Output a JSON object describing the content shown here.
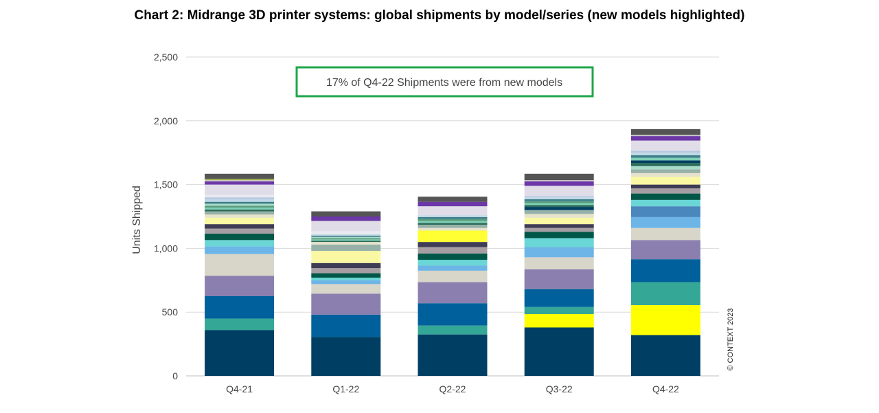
{
  "chart_data": {
    "type": "bar",
    "stacked": true,
    "title": "Chart 2: Midrange 3D printer systems: global shipments by model/series (new models highlighted)",
    "ylabel": "Units Shipped",
    "xlabel": "",
    "ylim": [
      0,
      2500
    ],
    "yticks": [
      0,
      500,
      1000,
      1500,
      2000,
      2500
    ],
    "ytick_labels": [
      "0",
      "500",
      "1,000",
      "1,500",
      "2,000",
      "2,500"
    ],
    "grid": true,
    "categories": [
      "Q4-21",
      "Q1-22",
      "Q2-22",
      "Q3-22",
      "Q4-22"
    ],
    "annotation": "17% of Q4-22 Shipments were from new models",
    "copyright": "© CONTEXT 2023",
    "segments": [
      [
        {
          "v": 360,
          "c": "#003f63"
        },
        {
          "v": 90,
          "c": "#35a797"
        },
        {
          "v": 175,
          "c": "#00609b"
        },
        {
          "v": 160,
          "c": "#8a7fae"
        },
        {
          "v": 170,
          "c": "#d8d5c9"
        },
        {
          "v": 60,
          "c": "#6db5e6"
        },
        {
          "v": 50,
          "c": "#6ad6d6"
        },
        {
          "v": 50,
          "c": "#005747"
        },
        {
          "v": 40,
          "c": "#a69ea3"
        },
        {
          "v": 35,
          "c": "#3f3c55"
        },
        {
          "v": 50,
          "c": "#fbf8a3"
        },
        {
          "v": 25,
          "c": "#e6e3cc"
        },
        {
          "v": 25,
          "c": "#97b1a8"
        },
        {
          "v": 15,
          "c": "#2c6c5a"
        },
        {
          "v": 15,
          "c": "#7fd0b5"
        },
        {
          "v": 15,
          "c": "#5b9c7e"
        },
        {
          "v": 15,
          "c": "#a9dcc9"
        },
        {
          "v": 15,
          "c": "#3d7f8a"
        },
        {
          "v": 20,
          "c": "#c0d8e6"
        },
        {
          "v": 15,
          "c": "#b8c7e0"
        },
        {
          "v": 20,
          "c": "#e9e9f0"
        },
        {
          "v": 80,
          "c": "#e0dde8"
        },
        {
          "v": 25,
          "c": "#6c37a6"
        },
        {
          "v": 10,
          "c": "#c8c8c8"
        },
        {
          "v": 10,
          "c": "#a3b14a"
        },
        {
          "v": 40,
          "c": "#555555"
        }
      ],
      [
        {
          "v": 305,
          "c": "#003f63"
        },
        {
          "v": 175,
          "c": "#00609b"
        },
        {
          "v": 165,
          "c": "#8a7fae"
        },
        {
          "v": 75,
          "c": "#d8d5c9"
        },
        {
          "v": 30,
          "c": "#6db5e6"
        },
        {
          "v": 20,
          "c": "#6ad6d6"
        },
        {
          "v": 35,
          "c": "#005747"
        },
        {
          "v": 40,
          "c": "#a69ea3"
        },
        {
          "v": 40,
          "c": "#3f3c55"
        },
        {
          "v": 95,
          "c": "#fbf8a3"
        },
        {
          "v": 50,
          "c": "#97b1a8"
        },
        {
          "v": 20,
          "c": "#e6e3cc"
        },
        {
          "v": 10,
          "c": "#2c6c5a"
        },
        {
          "v": 10,
          "c": "#7fd0b5"
        },
        {
          "v": 10,
          "c": "#5b9c7e"
        },
        {
          "v": 10,
          "c": "#a9dcc9"
        },
        {
          "v": 10,
          "c": "#3d7f8a"
        },
        {
          "v": 10,
          "c": "#c0d8e6"
        },
        {
          "v": 25,
          "c": "#e9e9f0"
        },
        {
          "v": 80,
          "c": "#e0dde8"
        },
        {
          "v": 35,
          "c": "#6c37a6"
        },
        {
          "v": 40,
          "c": "#555555"
        }
      ],
      [
        {
          "v": 325,
          "c": "#003f63"
        },
        {
          "v": 70,
          "c": "#35a797"
        },
        {
          "v": 175,
          "c": "#00609b"
        },
        {
          "v": 165,
          "c": "#8a7fae"
        },
        {
          "v": 90,
          "c": "#d8d5c9"
        },
        {
          "v": 40,
          "c": "#6db5e6"
        },
        {
          "v": 45,
          "c": "#6ad6d6"
        },
        {
          "v": 50,
          "c": "#005747"
        },
        {
          "v": 50,
          "c": "#a69ea3"
        },
        {
          "v": 40,
          "c": "#3f3c55"
        },
        {
          "v": 90,
          "c": "#ffff33"
        },
        {
          "v": 20,
          "c": "#e6e3cc"
        },
        {
          "v": 25,
          "c": "#97b1a8"
        },
        {
          "v": 15,
          "c": "#2c6c5a"
        },
        {
          "v": 15,
          "c": "#7fd0b5"
        },
        {
          "v": 15,
          "c": "#5b9c7e"
        },
        {
          "v": 15,
          "c": "#3d7f8a"
        },
        {
          "v": 15,
          "c": "#c0d8e6"
        },
        {
          "v": 70,
          "c": "#e0dde8"
        },
        {
          "v": 35,
          "c": "#6c37a6"
        },
        {
          "v": 40,
          "c": "#555555"
        }
      ],
      [
        {
          "v": 380,
          "c": "#003f63"
        },
        {
          "v": 105,
          "c": "#ffff00"
        },
        {
          "v": 55,
          "c": "#35a797"
        },
        {
          "v": 140,
          "c": "#00609b"
        },
        {
          "v": 155,
          "c": "#8a7fae"
        },
        {
          "v": 95,
          "c": "#d8d5c9"
        },
        {
          "v": 80,
          "c": "#6db5e6"
        },
        {
          "v": 70,
          "c": "#6ad6d6"
        },
        {
          "v": 50,
          "c": "#005747"
        },
        {
          "v": 30,
          "c": "#a69ea3"
        },
        {
          "v": 30,
          "c": "#3f3c55"
        },
        {
          "v": 50,
          "c": "#fbf8a3"
        },
        {
          "v": 30,
          "c": "#e6e3cc"
        },
        {
          "v": 30,
          "c": "#97b1a8"
        },
        {
          "v": 25,
          "c": "#003f63"
        },
        {
          "v": 15,
          "c": "#2c6c5a"
        },
        {
          "v": 15,
          "c": "#7fd0b5"
        },
        {
          "v": 15,
          "c": "#5b9c7e"
        },
        {
          "v": 15,
          "c": "#3d7f8a"
        },
        {
          "v": 15,
          "c": "#c0d8e6"
        },
        {
          "v": 10,
          "c": "#b8c7e0"
        },
        {
          "v": 80,
          "c": "#e0dde8"
        },
        {
          "v": 35,
          "c": "#6c37a6"
        },
        {
          "v": 10,
          "c": "#c8c8c8"
        },
        {
          "v": 50,
          "c": "#555555"
        }
      ],
      [
        {
          "v": 320,
          "c": "#003f63"
        },
        {
          "v": 235,
          "c": "#ffff00"
        },
        {
          "v": 180,
          "c": "#35a797"
        },
        {
          "v": 180,
          "c": "#00609b"
        },
        {
          "v": 150,
          "c": "#8a7fae"
        },
        {
          "v": 95,
          "c": "#d8d5c9"
        },
        {
          "v": 85,
          "c": "#6db5e6"
        },
        {
          "v": 85,
          "c": "#4a87bd"
        },
        {
          "v": 50,
          "c": "#6ad6d6"
        },
        {
          "v": 50,
          "c": "#005747"
        },
        {
          "v": 40,
          "c": "#a69ea3"
        },
        {
          "v": 30,
          "c": "#3f3c55"
        },
        {
          "v": 60,
          "c": "#fbf8a3"
        },
        {
          "v": 30,
          "c": "#e6e3cc"
        },
        {
          "v": 30,
          "c": "#97b1a8"
        },
        {
          "v": 25,
          "c": "#a9dcc9"
        },
        {
          "v": 25,
          "c": "#2c6c5a"
        },
        {
          "v": 20,
          "c": "#003f63"
        },
        {
          "v": 20,
          "c": "#7fd0b5"
        },
        {
          "v": 20,
          "c": "#3d7f8a"
        },
        {
          "v": 20,
          "c": "#c0d8e6"
        },
        {
          "v": 15,
          "c": "#b8c7e0"
        },
        {
          "v": 80,
          "c": "#e0dde8"
        },
        {
          "v": 35,
          "c": "#6c37a6"
        },
        {
          "v": 10,
          "c": "#c8c8c8"
        },
        {
          "v": 45,
          "c": "#555555"
        }
      ]
    ],
    "annotation_box_color": "#1ea54a",
    "grid_color": "#d9d9d9"
  }
}
